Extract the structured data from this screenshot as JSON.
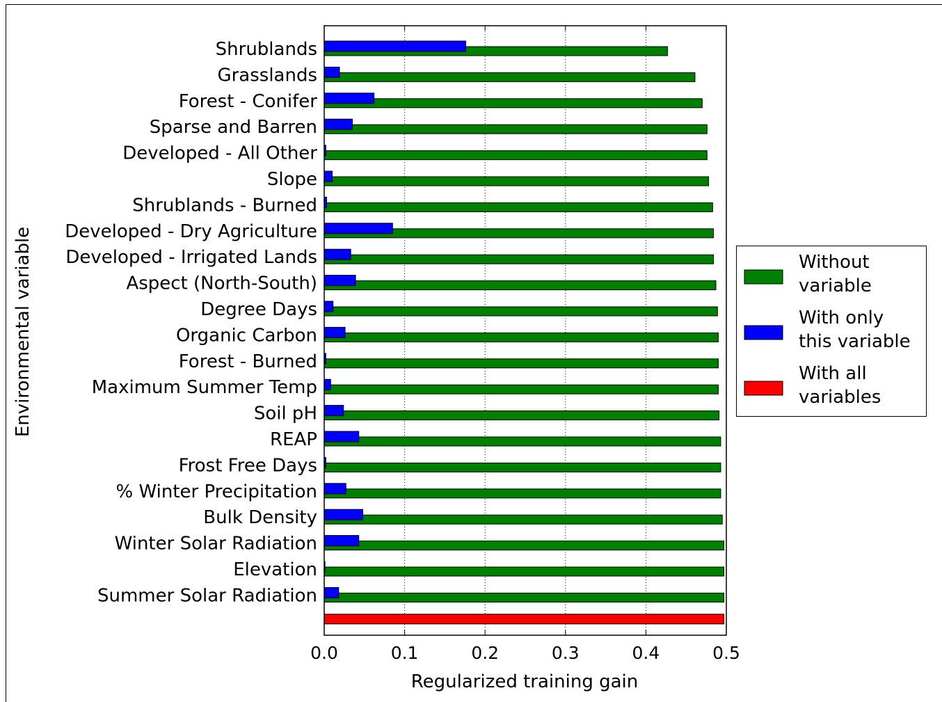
{
  "chart_data": {
    "type": "bar",
    "orientation": "horizontal",
    "xlabel": "Regularized training gain",
    "ylabel": "Environmental variable",
    "categories": [
      "Shrublands",
      "Grasslands",
      "Forest - Conifer",
      "Sparse and Barren",
      "Developed - All Other",
      "Slope",
      "Shrublands - Burned",
      "Developed - Dry Agriculture",
      "Developed - Irrigated Lands",
      "Aspect (North-South)",
      "Degree Days",
      "Organic Carbon",
      "Forest - Burned",
      "Maximum Summer Temp",
      "Soil pH",
      "REAP",
      "Frost Free Days",
      "% Winter Precipitation",
      "Bulk Density",
      "Winter Solar Radiation",
      "Elevation",
      "Summer Solar Radiation",
      null
    ],
    "series": [
      {
        "name": "Without variable",
        "color": "#008000",
        "values": [
          0.427,
          0.461,
          0.47,
          0.476,
          0.476,
          0.478,
          0.483,
          0.484,
          0.484,
          0.487,
          0.489,
          0.49,
          0.49,
          0.49,
          0.491,
          0.493,
          0.493,
          0.493,
          0.495,
          0.497,
          0.497,
          0.497,
          null
        ]
      },
      {
        "name": "With only this variable",
        "color": "#0000ff",
        "values": [
          0.176,
          0.019,
          0.062,
          0.035,
          0.002,
          0.01,
          0.003,
          0.085,
          0.033,
          0.039,
          0.011,
          0.026,
          0.002,
          0.008,
          0.024,
          0.043,
          0.002,
          0.027,
          0.048,
          0.043,
          0.001,
          0.018,
          null
        ]
      },
      {
        "name": "With all variables",
        "color": "#ff0000",
        "values": [
          null,
          null,
          null,
          null,
          null,
          null,
          null,
          null,
          null,
          null,
          null,
          null,
          null,
          null,
          null,
          null,
          null,
          null,
          null,
          null,
          null,
          null,
          0.497
        ]
      }
    ],
    "xlim": [
      0,
      0.5
    ],
    "xticks": [
      {
        "value": 0,
        "label": "0.0"
      },
      0.1,
      0.2,
      0.3,
      0.4,
      0.5
    ],
    "grid": true,
    "legend": "right"
  }
}
